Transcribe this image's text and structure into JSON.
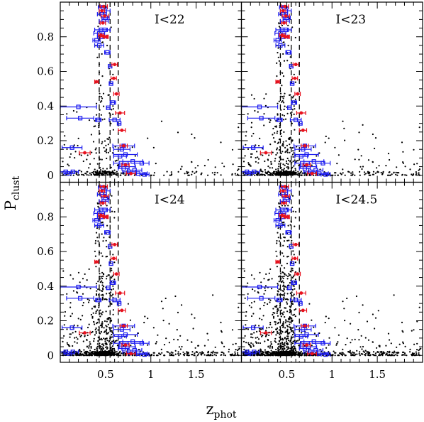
{
  "chart_data": {
    "type": "scatter",
    "xlabel": "z",
    "xlabel_sub": "phot",
    "ylabel": "P",
    "ylabel_sub": "clust",
    "xlim": [
      0,
      2.0
    ],
    "ylim": [
      -0.04,
      1.0
    ],
    "x_ticks": [
      "0.5",
      "1",
      "1.5"
    ],
    "y_ticks": [
      "0",
      "0.2",
      "0.4",
      "0.6",
      "0.8"
    ],
    "x_tick_values": [
      0.5,
      1.0,
      1.5
    ],
    "y_tick_values": [
      0,
      0.2,
      0.4,
      0.6,
      0.8
    ],
    "vlines": [
      0.43,
      0.55,
      0.64
    ],
    "colors": {
      "field": "#000000",
      "red": "#e8121e",
      "blue": "#1a1af0"
    },
    "panels": [
      {
        "label": "I<22",
        "density": 1
      },
      {
        "label": "I<23",
        "density": 2
      },
      {
        "label": "I<24",
        "density": 3
      },
      {
        "label": "I<24.5",
        "density": 4
      }
    ],
    "series": [
      {
        "color": "blue",
        "points": [
          [
            0.47,
            0.97,
            0.05
          ],
          [
            0.49,
            0.95,
            0.06
          ],
          [
            0.46,
            0.93,
            0.05
          ],
          [
            0.5,
            0.91,
            0.04
          ],
          [
            0.48,
            0.89,
            0.05
          ],
          [
            0.45,
            0.84,
            0.07
          ],
          [
            0.49,
            0.84,
            0.06
          ],
          [
            0.43,
            0.82,
            0.06
          ],
          [
            0.46,
            0.8,
            0.05
          ],
          [
            0.4,
            0.78,
            0.04
          ],
          [
            0.43,
            0.75,
            0.05
          ],
          [
            0.52,
            0.71,
            0.03
          ],
          [
            0.55,
            0.63,
            0.02
          ],
          [
            0.56,
            0.53,
            0.02
          ],
          [
            0.58,
            0.42,
            0.03
          ],
          [
            0.2,
            0.395,
            0.2
          ],
          [
            0.53,
            0.39,
            0.02
          ],
          [
            0.22,
            0.33,
            0.15
          ],
          [
            0.42,
            0.32,
            0.03
          ],
          [
            0.6,
            0.32,
            0.06
          ],
          [
            0.65,
            0.3,
            0.02
          ],
          [
            0.13,
            0.16,
            0.11
          ],
          [
            0.7,
            0.17,
            0.12
          ],
          [
            0.68,
            0.15,
            0.09
          ],
          [
            0.72,
            0.12,
            0.13
          ],
          [
            0.66,
            0.11,
            0.07
          ],
          [
            0.8,
            0.08,
            0.11
          ],
          [
            0.67,
            0.07,
            0.08
          ],
          [
            0.9,
            0.07,
            0.08
          ],
          [
            0.74,
            0.05,
            0.09
          ],
          [
            0.7,
            0.04,
            0.06
          ],
          [
            0.82,
            0.03,
            0.08
          ],
          [
            0.06,
            0.02,
            0.06
          ],
          [
            0.14,
            0.02,
            0.06
          ],
          [
            0.08,
            0.01,
            0.04
          ],
          [
            0.86,
            0.01,
            0.1
          ],
          [
            0.93,
            0.005,
            0.05
          ],
          [
            0.76,
            0.02,
            0.07
          ]
        ]
      },
      {
        "color": "red",
        "points": [
          [
            0.48,
            0.975,
            0.04
          ],
          [
            0.46,
            0.95,
            0.03
          ],
          [
            0.49,
            0.92,
            0.04
          ],
          [
            0.47,
            0.88,
            0.03
          ],
          [
            0.45,
            0.81,
            0.03
          ],
          [
            0.48,
            0.8,
            0.04
          ],
          [
            0.51,
            0.8,
            0.02
          ],
          [
            0.6,
            0.64,
            0.03
          ],
          [
            0.59,
            0.56,
            0.03
          ],
          [
            0.4,
            0.54,
            0.02
          ],
          [
            0.62,
            0.47,
            0.03
          ],
          [
            0.66,
            0.36,
            0.05
          ],
          [
            0.68,
            0.26,
            0.04
          ],
          [
            0.7,
            0.17,
            0.04
          ],
          [
            0.27,
            0.13,
            0.06
          ],
          [
            0.72,
            0.06,
            0.04
          ],
          [
            0.78,
            0.01,
            0.05
          ]
        ]
      }
    ]
  }
}
